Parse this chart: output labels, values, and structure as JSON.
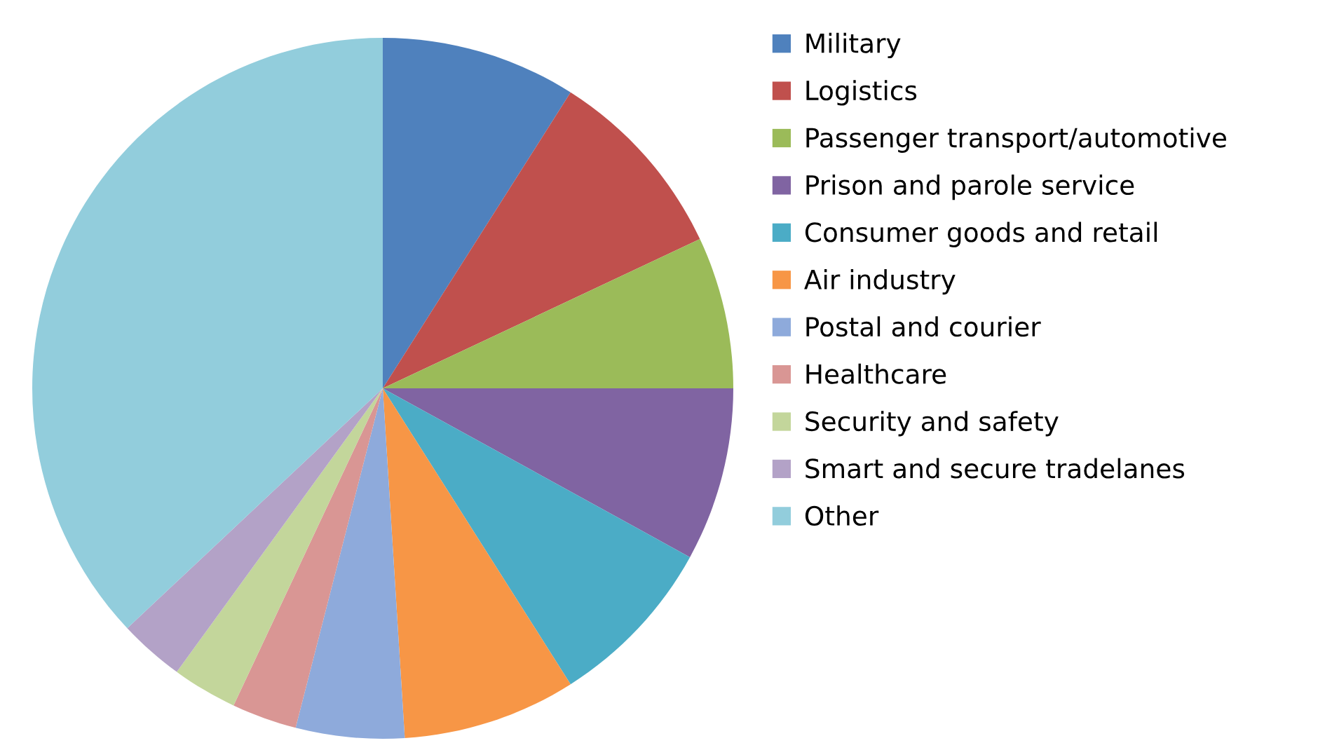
{
  "chart_data": {
    "type": "pie",
    "categories": [
      "Military",
      "Logistics",
      "Passenger transport/automotive",
      "Prison and parole service",
      "Consumer goods and retail",
      "Air industry",
      "Postal and courier",
      "Healthcare",
      "Security and safety",
      "Smart and secure tradelanes",
      "Other"
    ],
    "values": [
      9,
      9,
      7,
      8,
      8,
      8,
      5,
      3,
      3,
      3,
      37
    ],
    "colors": [
      "#4f81bd",
      "#c0504d",
      "#9bbb59",
      "#8064a2",
      "#4bacc6",
      "#f79646",
      "#8eaadb",
      "#d99694",
      "#c3d69b",
      "#b3a2c7",
      "#92cddc"
    ],
    "legend": "right"
  }
}
